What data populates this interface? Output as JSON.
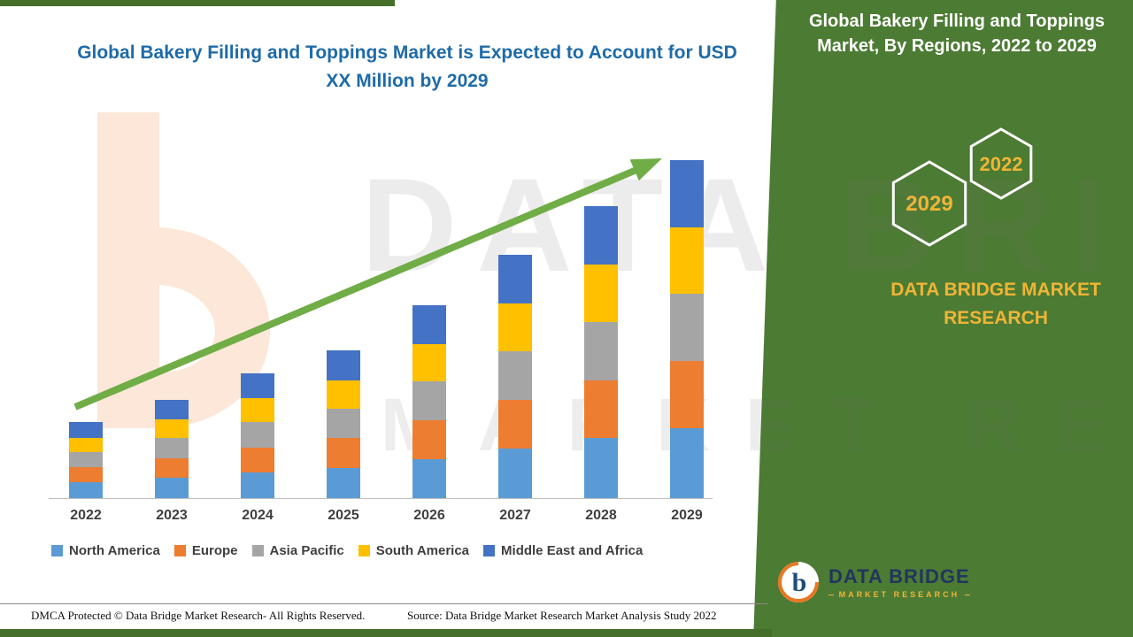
{
  "page": {
    "main_title": "Global Bakery Filling and Toppings Market is Expected to Account for USD XX Million by 2029"
  },
  "side_panel": {
    "title": "Global Bakery Filling and Toppings Market, By Regions, 2022 to 2029",
    "hexagons": [
      {
        "label": "2029"
      },
      {
        "label": "2022"
      }
    ],
    "brand_line1": "DATA BRIDGE MARKET",
    "brand_line2": "RESEARCH"
  },
  "watermark": {
    "line1": "DATA BRIDGE",
    "line2": "MARKET RESEARCH"
  },
  "footer": {
    "dmca": "DMCA Protected © Data Bridge Market Research- All Rights Reserved.",
    "source": "Source: Data Bridge Market Research Market Analysis Study 2022",
    "logo_title": "DATA BRIDGE",
    "logo_subtitle": "MARKET RESEARCH"
  },
  "colors": {
    "title_blue": "#1E6BA8",
    "band_green": "#4C7B33",
    "strip_green": "#456F2B",
    "arrow_green": "#70AD47",
    "gold": "#EFB537",
    "axis_gray": "#BFBFBF",
    "label_gray": "#404040",
    "logo_navy": "#22355E",
    "watermark_orange": "#FAD0B2"
  },
  "chart_data": {
    "type": "bar",
    "stacked": true,
    "title": "Global Bakery Filling and Toppings Market is Expected to Account for USD XX Million by 2029",
    "xlabel": "",
    "ylabel": "",
    "ylim": [
      0,
      45
    ],
    "grid": false,
    "legend_position": "bottom",
    "trend_arrow": true,
    "categories": [
      "2022",
      "2023",
      "2024",
      "2025",
      "2026",
      "2027",
      "2028",
      "2029"
    ],
    "series": [
      {
        "name": "North America",
        "color": "#5B9BD5",
        "values": [
          2.1,
          2.7,
          3.4,
          4.0,
          5.2,
          6.6,
          7.9,
          9.2
        ]
      },
      {
        "name": "Europe",
        "color": "#ED7D31",
        "values": [
          2.0,
          2.6,
          3.3,
          3.9,
          5.1,
          6.4,
          7.7,
          8.9
        ]
      },
      {
        "name": "Asia Pacific",
        "color": "#A5A5A5",
        "values": [
          2.0,
          2.6,
          3.3,
          3.9,
          5.1,
          6.4,
          7.7,
          8.9
        ]
      },
      {
        "name": "South America",
        "color": "#FFC000",
        "values": [
          1.9,
          2.5,
          3.2,
          3.8,
          5.0,
          6.3,
          7.6,
          8.8
        ]
      },
      {
        "name": "Middle East and Africa",
        "color": "#4472C4",
        "values": [
          2.0,
          2.6,
          3.3,
          3.9,
          5.1,
          6.4,
          7.7,
          8.8
        ]
      }
    ]
  }
}
